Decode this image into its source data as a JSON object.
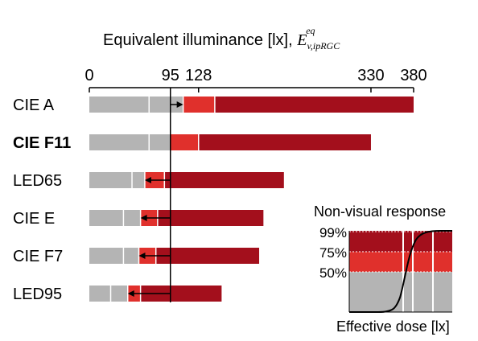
{
  "chart_data": {
    "type": "bar",
    "title_main": "Equivalent illuminance [lx], ",
    "title_symbol": "E",
    "title_sub": "v,ipRGC",
    "title_sup": "eq",
    "x_ticks": [
      0,
      95,
      128,
      330,
      380
    ],
    "xlim": [
      0,
      380
    ],
    "reference_line": 95,
    "categories": [
      "CIE A",
      "CIE F11",
      "LED65",
      "CIE E",
      "CIE F7",
      "LED95"
    ],
    "highlight_category": "CIE F11",
    "bars": [
      {
        "label": "CIE A",
        "gray": [
          0,
          70,
          95
        ],
        "red_start": 110,
        "dark_start": 147,
        "end": 380,
        "arrow_from": 95,
        "arrow_to": 110
      },
      {
        "label": "CIE F11",
        "gray": [
          0,
          70,
          95
        ],
        "red_start": 95,
        "dark_start": 128,
        "end": 330,
        "arrow_from": null,
        "arrow_to": null
      },
      {
        "label": "LED65",
        "gray": [
          0,
          50,
          65
        ],
        "red_start": 65,
        "dark_start": 88,
        "end": 228,
        "arrow_from": 95,
        "arrow_to": 65
      },
      {
        "label": "CIE E",
        "gray": [
          0,
          40,
          60
        ],
        "red_start": 60,
        "dark_start": 80,
        "end": 204,
        "arrow_from": 95,
        "arrow_to": 60
      },
      {
        "label": "CIE F7",
        "gray": [
          0,
          40,
          58
        ],
        "red_start": 58,
        "dark_start": 78,
        "end": 199,
        "arrow_from": 95,
        "arrow_to": 58
      },
      {
        "label": "LED95",
        "gray": [
          0,
          25,
          45
        ],
        "red_start": 45,
        "dark_start": 60,
        "end": 155,
        "arrow_from": 95,
        "arrow_to": 45
      }
    ],
    "colors": {
      "gray": "#b4b4b4",
      "red": "#e0302c",
      "dark_red": "#a30f1c",
      "line": "#000000"
    }
  },
  "inset": {
    "title": "Non-visual response",
    "xlabel": "Effective dose [lx]",
    "levels": [
      "99%",
      "75%",
      "50%"
    ]
  }
}
